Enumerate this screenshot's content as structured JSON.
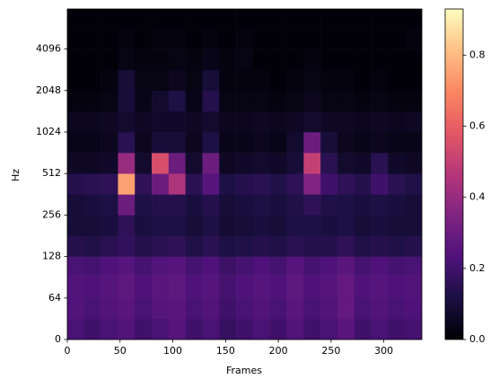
{
  "chart_data": {
    "type": "heatmap",
    "colormap": "magma",
    "xlabel": "Frames",
    "ylabel": "Hz",
    "yscale": "symlog",
    "linthresh": 64,
    "xlim": [
      0,
      336
    ],
    "xticks": [
      0,
      50,
      100,
      150,
      200,
      250,
      300
    ],
    "ylim": [
      0,
      8000
    ],
    "yticks": [
      0,
      64,
      128,
      256,
      512,
      1024,
      2048,
      4096
    ],
    "clim": [
      0,
      0.93
    ],
    "cticks": [
      {
        "value": 0,
        "label": "0.0"
      },
      {
        "value": 0.2,
        "label": "0.2"
      },
      {
        "value": 0.4,
        "label": "0.4"
      },
      {
        "value": 0.6,
        "label": "0.6"
      },
      {
        "value": 0.8,
        "label": "0.8"
      }
    ],
    "x_edges": [
      0,
      16,
      32,
      48,
      64,
      80,
      96,
      112,
      128,
      144,
      160,
      176,
      192,
      208,
      224,
      240,
      256,
      272,
      288,
      304,
      320,
      336
    ],
    "y_edges": [
      0,
      32,
      64,
      96,
      128,
      181,
      256,
      362,
      512,
      724,
      1024,
      1448,
      2048,
      2896,
      4096,
      5793,
      8000
    ],
    "z": [
      [
        0.22,
        0.2,
        0.22,
        0.24,
        0.2,
        0.22,
        0.25,
        0.2,
        0.22,
        0.18,
        0.2,
        0.22,
        0.2,
        0.24,
        0.2,
        0.22,
        0.26,
        0.2,
        0.22,
        0.2,
        0.21
      ],
      [
        0.24,
        0.22,
        0.24,
        0.26,
        0.22,
        0.25,
        0.26,
        0.22,
        0.24,
        0.2,
        0.22,
        0.24,
        0.22,
        0.26,
        0.22,
        0.24,
        0.28,
        0.22,
        0.24,
        0.22,
        0.23
      ],
      [
        0.24,
        0.23,
        0.25,
        0.27,
        0.23,
        0.26,
        0.27,
        0.23,
        0.25,
        0.21,
        0.23,
        0.25,
        0.23,
        0.27,
        0.23,
        0.25,
        0.28,
        0.23,
        0.25,
        0.23,
        0.24
      ],
      [
        0.22,
        0.21,
        0.23,
        0.25,
        0.21,
        0.24,
        0.25,
        0.21,
        0.23,
        0.19,
        0.21,
        0.23,
        0.21,
        0.25,
        0.21,
        0.23,
        0.26,
        0.21,
        0.23,
        0.21,
        0.22
      ],
      [
        0.14,
        0.13,
        0.15,
        0.17,
        0.14,
        0.15,
        0.16,
        0.13,
        0.15,
        0.12,
        0.13,
        0.14,
        0.13,
        0.15,
        0.14,
        0.14,
        0.16,
        0.13,
        0.14,
        0.13,
        0.14
      ],
      [
        0.1,
        0.1,
        0.11,
        0.16,
        0.11,
        0.12,
        0.12,
        0.1,
        0.12,
        0.09,
        0.1,
        0.11,
        0.1,
        0.12,
        0.12,
        0.11,
        0.12,
        0.1,
        0.11,
        0.1,
        0.1
      ],
      [
        0.1,
        0.11,
        0.12,
        0.3,
        0.12,
        0.14,
        0.14,
        0.11,
        0.14,
        0.1,
        0.11,
        0.12,
        0.11,
        0.13,
        0.16,
        0.13,
        0.12,
        0.11,
        0.12,
        0.11,
        0.1
      ],
      [
        0.14,
        0.15,
        0.16,
        0.75,
        0.16,
        0.3,
        0.45,
        0.15,
        0.25,
        0.12,
        0.14,
        0.15,
        0.13,
        0.16,
        0.35,
        0.2,
        0.16,
        0.14,
        0.2,
        0.15,
        0.13
      ],
      [
        0.06,
        0.06,
        0.07,
        0.4,
        0.08,
        0.55,
        0.3,
        0.08,
        0.3,
        0.06,
        0.07,
        0.08,
        0.07,
        0.1,
        0.5,
        0.15,
        0.08,
        0.07,
        0.15,
        0.07,
        0.06
      ],
      [
        0.04,
        0.04,
        0.05,
        0.15,
        0.05,
        0.1,
        0.1,
        0.05,
        0.12,
        0.04,
        0.04,
        0.05,
        0.04,
        0.08,
        0.3,
        0.1,
        0.05,
        0.04,
        0.05,
        0.04,
        0.04
      ],
      [
        0.05,
        0.05,
        0.06,
        0.08,
        0.06,
        0.07,
        0.07,
        0.06,
        0.08,
        0.05,
        0.05,
        0.06,
        0.05,
        0.06,
        0.08,
        0.06,
        0.06,
        0.05,
        0.06,
        0.05,
        0.06
      ],
      [
        0.02,
        0.02,
        0.03,
        0.1,
        0.04,
        0.08,
        0.12,
        0.04,
        0.14,
        0.03,
        0.03,
        0.03,
        0.02,
        0.03,
        0.05,
        0.03,
        0.03,
        0.02,
        0.03,
        0.02,
        0.02
      ],
      [
        0.01,
        0.01,
        0.02,
        0.1,
        0.03,
        0.03,
        0.05,
        0.03,
        0.1,
        0.02,
        0.02,
        0.02,
        0.01,
        0.02,
        0.03,
        0.02,
        0.02,
        0.01,
        0.02,
        0.01,
        0.01
      ],
      [
        0.01,
        0.01,
        0.01,
        0.03,
        0.02,
        0.02,
        0.03,
        0.02,
        0.04,
        0.02,
        0.03,
        0.01,
        0.01,
        0.01,
        0.02,
        0.01,
        0.01,
        0.01,
        0.01,
        0.01,
        0.01
      ],
      [
        0.01,
        0.01,
        0.01,
        0.02,
        0.01,
        0.02,
        0.02,
        0.01,
        0.02,
        0.01,
        0.02,
        0.01,
        0.01,
        0.01,
        0.01,
        0.01,
        0.01,
        0.01,
        0.01,
        0.01,
        0.02
      ],
      [
        0.01,
        0.01,
        0.01,
        0.01,
        0.01,
        0.01,
        0.01,
        0.01,
        0.01,
        0.01,
        0.01,
        0.01,
        0.01,
        0.01,
        0.01,
        0.01,
        0.01,
        0.01,
        0.01,
        0.01,
        0.01
      ]
    ]
  }
}
